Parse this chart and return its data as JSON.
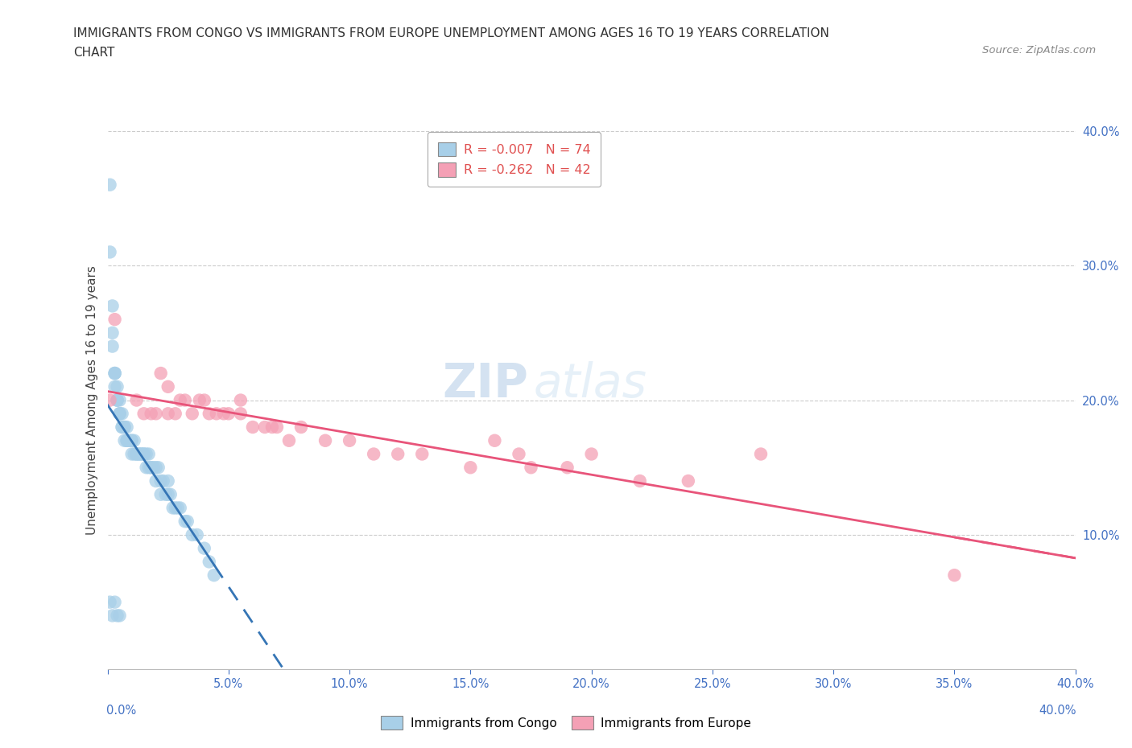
{
  "title_line1": "IMMIGRANTS FROM CONGO VS IMMIGRANTS FROM EUROPE UNEMPLOYMENT AMONG AGES 16 TO 19 YEARS CORRELATION",
  "title_line2": "CHART",
  "source": "Source: ZipAtlas.com",
  "ylabel": "Unemployment Among Ages 16 to 19 years",
  "legend1_label": "Immigrants from Congo",
  "legend2_label": "Immigrants from Europe",
  "R_congo": -0.007,
  "N_congo": 74,
  "R_europe": -0.262,
  "N_europe": 42,
  "congo_color": "#a8cfe8",
  "europe_color": "#f4a0b5",
  "congo_trend_color": "#3575b5",
  "europe_trend_color": "#e8547a",
  "congo_trend_R_color": "#e05050",
  "congo_trend_N_color": "#3575b5",
  "xlim": [
    0.0,
    0.4
  ],
  "ylim": [
    0.0,
    0.4
  ],
  "xticks": [
    0.0,
    0.05,
    0.1,
    0.15,
    0.2,
    0.25,
    0.3,
    0.35,
    0.4
  ],
  "yticks": [
    0.0,
    0.1,
    0.2,
    0.3,
    0.4
  ],
  "right_yticks": [
    0.1,
    0.2,
    0.3,
    0.4
  ],
  "congo_x": [
    0.001,
    0.001,
    0.002,
    0.002,
    0.002,
    0.003,
    0.003,
    0.003,
    0.003,
    0.004,
    0.004,
    0.004,
    0.004,
    0.005,
    0.005,
    0.005,
    0.005,
    0.006,
    0.006,
    0.006,
    0.007,
    0.007,
    0.007,
    0.008,
    0.008,
    0.008,
    0.009,
    0.009,
    0.01,
    0.01,
    0.01,
    0.011,
    0.011,
    0.012,
    0.012,
    0.013,
    0.013,
    0.014,
    0.014,
    0.015,
    0.015,
    0.016,
    0.016,
    0.017,
    0.017,
    0.018,
    0.018,
    0.019,
    0.02,
    0.02,
    0.021,
    0.022,
    0.022,
    0.023,
    0.024,
    0.025,
    0.025,
    0.026,
    0.027,
    0.028,
    0.029,
    0.03,
    0.032,
    0.033,
    0.035,
    0.037,
    0.04,
    0.042,
    0.044,
    0.001,
    0.002,
    0.003,
    0.004,
    0.005
  ],
  "congo_y": [
    0.36,
    0.31,
    0.27,
    0.25,
    0.24,
    0.22,
    0.22,
    0.21,
    0.22,
    0.2,
    0.21,
    0.2,
    0.2,
    0.19,
    0.19,
    0.2,
    0.19,
    0.18,
    0.18,
    0.19,
    0.18,
    0.18,
    0.17,
    0.17,
    0.18,
    0.17,
    0.17,
    0.17,
    0.17,
    0.16,
    0.17,
    0.16,
    0.17,
    0.16,
    0.16,
    0.16,
    0.16,
    0.16,
    0.16,
    0.16,
    0.16,
    0.15,
    0.16,
    0.15,
    0.16,
    0.15,
    0.15,
    0.15,
    0.15,
    0.14,
    0.15,
    0.14,
    0.13,
    0.14,
    0.13,
    0.13,
    0.14,
    0.13,
    0.12,
    0.12,
    0.12,
    0.12,
    0.11,
    0.11,
    0.1,
    0.1,
    0.09,
    0.08,
    0.07,
    0.05,
    0.04,
    0.05,
    0.04,
    0.04
  ],
  "europe_x": [
    0.003,
    0.012,
    0.015,
    0.018,
    0.02,
    0.022,
    0.025,
    0.025,
    0.028,
    0.03,
    0.032,
    0.035,
    0.038,
    0.04,
    0.042,
    0.045,
    0.048,
    0.05,
    0.055,
    0.055,
    0.06,
    0.065,
    0.068,
    0.07,
    0.075,
    0.08,
    0.09,
    0.1,
    0.11,
    0.12,
    0.13,
    0.15,
    0.16,
    0.17,
    0.175,
    0.19,
    0.2,
    0.22,
    0.24,
    0.27,
    0.35,
    0.001
  ],
  "europe_y": [
    0.26,
    0.2,
    0.19,
    0.19,
    0.19,
    0.22,
    0.21,
    0.19,
    0.19,
    0.2,
    0.2,
    0.19,
    0.2,
    0.2,
    0.19,
    0.19,
    0.19,
    0.19,
    0.19,
    0.2,
    0.18,
    0.18,
    0.18,
    0.18,
    0.17,
    0.18,
    0.17,
    0.17,
    0.16,
    0.16,
    0.16,
    0.15,
    0.17,
    0.16,
    0.15,
    0.15,
    0.16,
    0.14,
    0.14,
    0.16,
    0.07,
    0.2
  ],
  "watermark_zip": "ZIP",
  "watermark_atlas": "atlas",
  "background_color": "#ffffff",
  "grid_color": "#cccccc",
  "tick_color": "#4472c4"
}
